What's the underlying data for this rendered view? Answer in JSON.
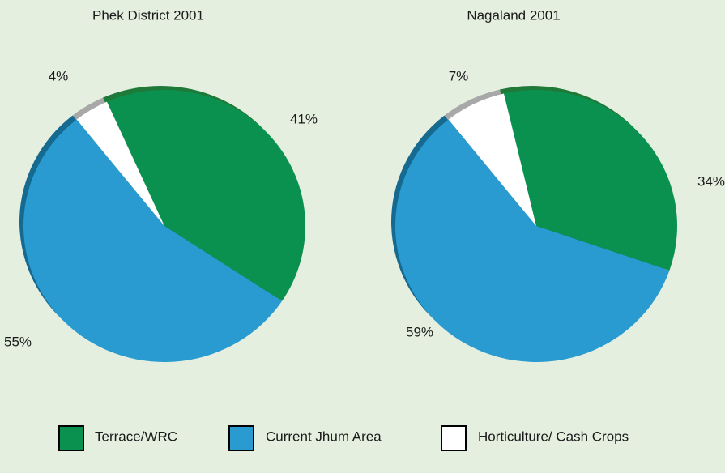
{
  "chart_data": [
    {
      "type": "pie",
      "title": "Phek District  2001",
      "categories": [
        "Terrace/WRC",
        "Current Jhum Area",
        "Horticulture/ Cash Crops"
      ],
      "values": [
        41,
        55,
        4
      ],
      "value_labels": [
        "41%",
        "55%",
        "4%"
      ],
      "colors": [
        "#0a9150",
        "#2a9bd0",
        "#ffffff"
      ]
    },
    {
      "type": "pie",
      "title": "Nagaland  2001",
      "categories": [
        "Terrace/WRC",
        "Current Jhum Area",
        "Horticulture/ Cash Crops"
      ],
      "values": [
        34,
        59,
        7
      ],
      "value_labels": [
        "34%",
        "59%",
        "7%"
      ],
      "colors": [
        "#0a9150",
        "#2a9bd0",
        "#ffffff"
      ]
    }
  ]
}
